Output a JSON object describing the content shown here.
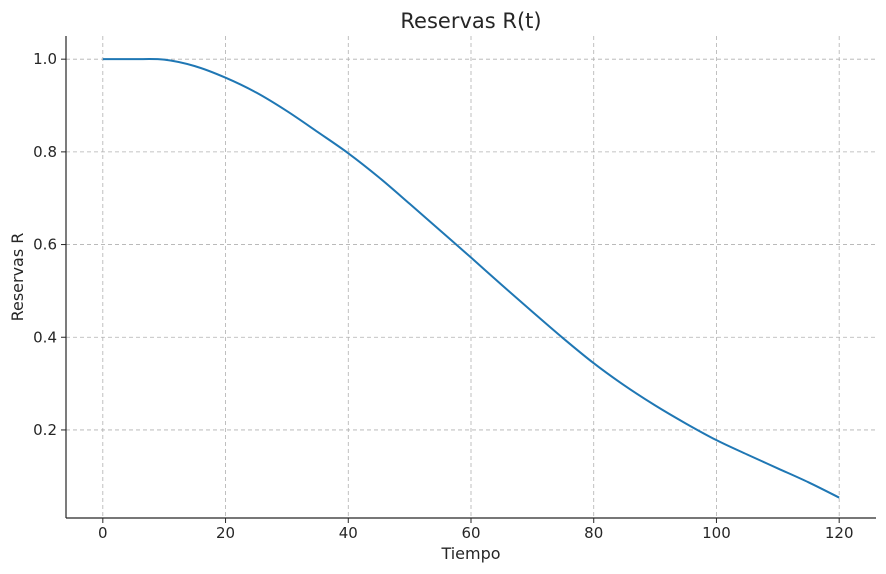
{
  "chart_data": {
    "type": "line",
    "title": "Reservas R(t)",
    "xlabel": "Tiempo",
    "ylabel": "Reservas R",
    "xlim": [
      -6,
      126
    ],
    "ylim": [
      0.01,
      1.05
    ],
    "xticks": [
      0,
      20,
      40,
      60,
      80,
      100,
      120
    ],
    "yticks": [
      0.2,
      0.4,
      0.6,
      0.8,
      1.0
    ],
    "xtick_labels": [
      "0",
      "20",
      "40",
      "60",
      "80",
      "100",
      "120"
    ],
    "ytick_labels": [
      "0.2",
      "0.4",
      "0.6",
      "0.8",
      "1.0"
    ],
    "grid": true,
    "series": [
      {
        "color": "#1f77b4",
        "x": [
          0,
          5,
          10,
          15,
          20,
          25,
          30,
          35,
          40,
          45,
          50,
          55,
          60,
          65,
          70,
          75,
          80,
          85,
          90,
          95,
          100,
          105,
          110,
          115,
          120
        ],
        "y": [
          1.0,
          1.0,
          0.999,
          0.985,
          0.96,
          0.928,
          0.888,
          0.843,
          0.797,
          0.745,
          0.688,
          0.63,
          0.572,
          0.513,
          0.455,
          0.398,
          0.344,
          0.296,
          0.253,
          0.214,
          0.178,
          0.147,
          0.117,
          0.087,
          0.054
        ]
      }
    ]
  }
}
